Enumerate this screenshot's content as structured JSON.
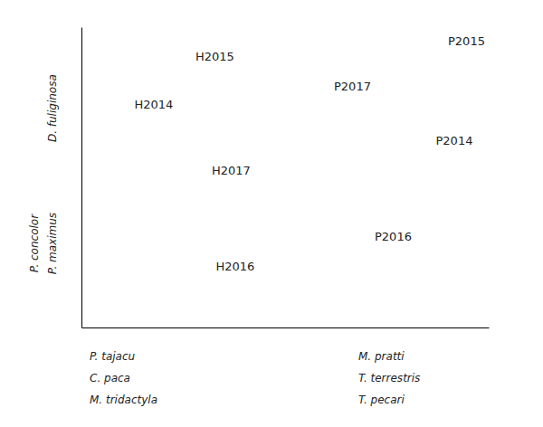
{
  "chart_data": {
    "type": "scatter",
    "marker": "none",
    "color": "#222222",
    "x": [
      0.13,
      0.28,
      0.33,
      0.32,
      0.87,
      0.9,
      0.72,
      0.62
    ],
    "values": [
      0.72,
      0.88,
      0.18,
      0.5,
      0.6,
      0.93,
      0.28,
      0.78
    ],
    "labels": [
      "H2014",
      "H2015",
      "H2016",
      "H2017",
      "P2014",
      "P2015",
      "P2016",
      "P2017"
    ],
    "ylabel": [
      [
        "D. fuliginosa"
      ],
      [
        "P. concolor",
        "P. maximus"
      ]
    ],
    "xlabel": [
      [
        "P. tajacu",
        "C. paca",
        "M. tridactyla"
      ],
      [
        "M. pratti",
        "T. terrestris",
        "T. pecari"
      ]
    ],
    "xlim": [
      0,
      1
    ],
    "ylim": [
      0,
      1
    ],
    "xticks": [],
    "yticks": [],
    "tick_labels": false,
    "grid": false
  }
}
